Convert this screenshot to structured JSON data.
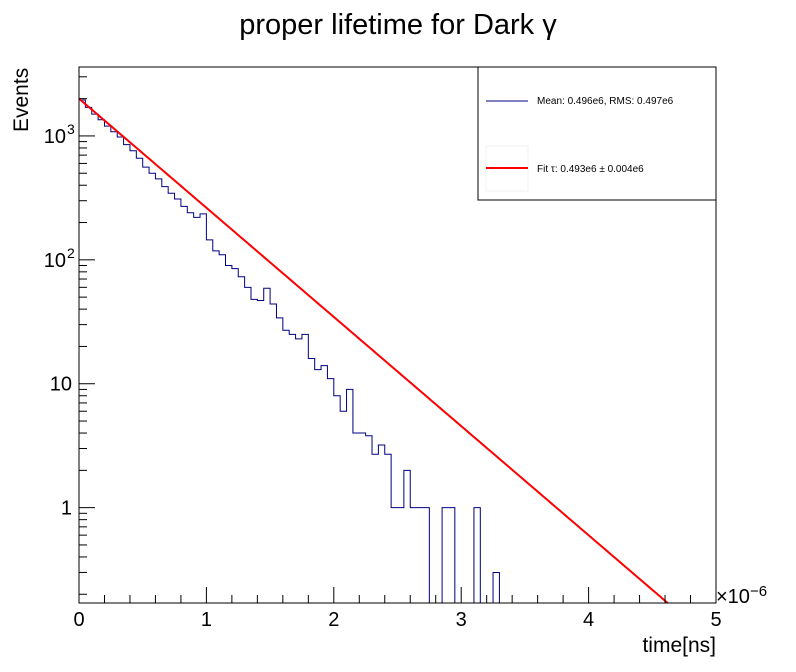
{
  "chart_data": {
    "type": "histogram",
    "title": "proper lifetime for Dark γ",
    "xlabel": "time[ns]",
    "ylabel": "Events",
    "x_exponent": "×10",
    "x_exponent_power": "−6",
    "xlim": [
      0,
      5
    ],
    "ylim": [
      0.17,
      3600
    ],
    "yscale": "log",
    "grid": false,
    "x_ticks": [
      {
        "v": 0,
        "label": "0"
      },
      {
        "v": 1,
        "label": "1"
      },
      {
        "v": 2,
        "label": "2"
      },
      {
        "v": 3,
        "label": "3"
      },
      {
        "v": 4,
        "label": "4"
      },
      {
        "v": 5,
        "label": "5"
      }
    ],
    "y_ticks": [
      {
        "v": 1,
        "label": "1"
      },
      {
        "v": 10,
        "label": "10"
      },
      {
        "v": 100,
        "label": "10",
        "sup": "2"
      },
      {
        "v": 1000,
        "label": "10",
        "sup": "3"
      }
    ],
    "legend_position": "top-right",
    "legend": [
      {
        "label": "Mean: 0.496e6, RMS: 0.497e6",
        "color": "#000080"
      },
      {
        "label": "Fit τ: 0.493e6 ± 0.004e6",
        "color": "#ff0000"
      }
    ],
    "histogram": {
      "name": "Mean: 0.496e6, RMS: 0.497e6",
      "color": "#000080",
      "bin_width": 0.05,
      "bin_start": 0,
      "counts": [
        1950,
        1700,
        1500,
        1350,
        1200,
        1080,
        980,
        850,
        760,
        660,
        560,
        500,
        450,
        390,
        345,
        310,
        270,
        240,
        220,
        235,
        145,
        118,
        110,
        90,
        85,
        73,
        60,
        48,
        47,
        59,
        44,
        34,
        27,
        25,
        23,
        25,
        16,
        13,
        14,
        11,
        8,
        6,
        9,
        4,
        4,
        3.8,
        2.7,
        3.2,
        2.7,
        1,
        1,
        2,
        1,
        1,
        1,
        0,
        0,
        1,
        1,
        0,
        0,
        0,
        1,
        0,
        0,
        0.3,
        0,
        0,
        0,
        0,
        0,
        0,
        0,
        0,
        0,
        0,
        0,
        0,
        0,
        0,
        0,
        0,
        0,
        0,
        0,
        0,
        0,
        0,
        0,
        0,
        0,
        0,
        0,
        0,
        0,
        0,
        0,
        0,
        0,
        0
      ]
    },
    "fit": {
      "name": "Fit τ: 0.493e6 ± 0.004e6",
      "color": "#ff0000",
      "function": "exponential",
      "amplitude": 2000,
      "tau": 0.493,
      "x_range": [
        0,
        4.63
      ]
    }
  },
  "colors": {
    "frame": "#000000",
    "histogram": "#000080",
    "fit": "#ff0000",
    "background": "#ffffff"
  }
}
